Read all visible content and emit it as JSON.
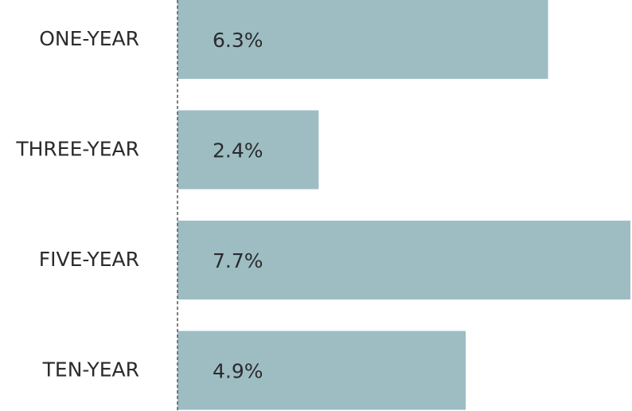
{
  "chart_data": {
    "type": "bar",
    "orientation": "horizontal",
    "categories": [
      "ONE-YEAR",
      "THREE-YEAR",
      "FIVE-YEAR",
      "TEN-YEAR"
    ],
    "values": [
      6.3,
      2.4,
      7.7,
      4.9
    ],
    "value_labels": [
      "6.3%",
      "2.4%",
      "7.7%",
      "4.9%"
    ],
    "color": "#9dbdc3"
  }
}
